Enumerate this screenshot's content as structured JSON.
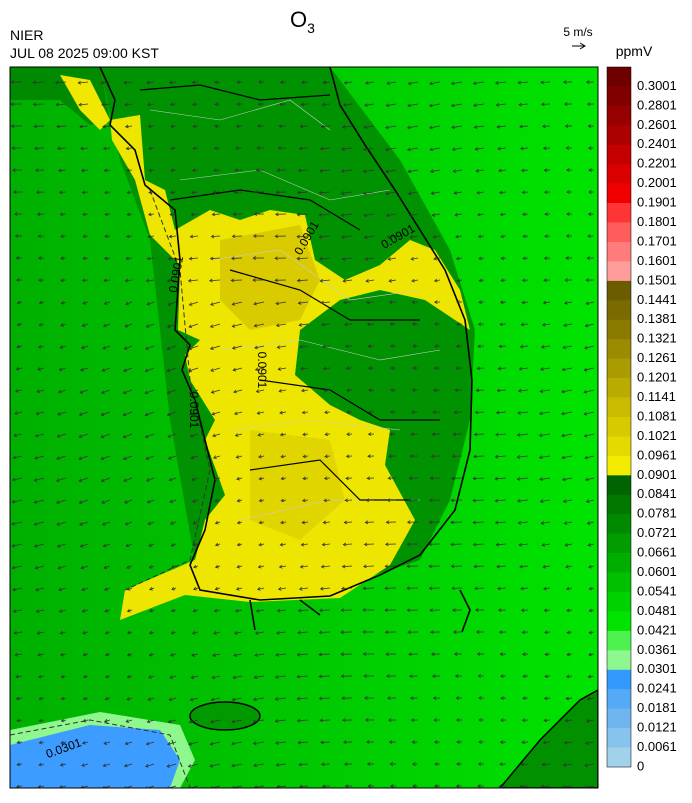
{
  "header": {
    "title": "O",
    "title_subscript": "3",
    "agency": "NIER",
    "datetime": "JUL 08 2025 09:00 KST",
    "wind_scale": "5 m/s"
  },
  "legend": {
    "unit": "ppmV",
    "labels": [
      "0.3001",
      "0.2801",
      "0.2601",
      "0.2401",
      "0.2201",
      "0.2001",
      "0.1901",
      "0.1801",
      "0.1701",
      "0.1601",
      "0.1501",
      "0.1441",
      "0.1381",
      "0.1321",
      "0.1261",
      "0.1201",
      "0.1141",
      "0.1081",
      "0.1021",
      "0.0961",
      "0.0901",
      "0.0841",
      "0.0781",
      "0.0721",
      "0.0661",
      "0.0601",
      "0.0541",
      "0.0481",
      "0.0421",
      "0.0361",
      "0.0301",
      "0.0241",
      "0.0181",
      "0.0121",
      "0.0061",
      "0"
    ],
    "colors": [
      "#6e0000",
      "#800000",
      "#960000",
      "#ad0000",
      "#c40000",
      "#db0000",
      "#f00000",
      "#ff3434",
      "#ff5c5c",
      "#ff7c7c",
      "#ff9c9c",
      "#6b5c00",
      "#7a6b00",
      "#8a7b00",
      "#9a8b00",
      "#aa9b00",
      "#baab00",
      "#cabb00",
      "#d8ca00",
      "#e6d900",
      "#f4ec00",
      "#006400",
      "#007800",
      "#008a00",
      "#009c00",
      "#00ae00",
      "#00c000",
      "#00d200",
      "#00e400",
      "#4ef24e",
      "#8ef88e",
      "#3399ff",
      "#55aaf5",
      "#6fb6f0",
      "#87c3ec",
      "#a2d2ea"
    ]
  },
  "map": {
    "contour_labels": [
      "0.0901",
      "0.0901",
      "0.0901",
      "0.0901",
      "0.0901",
      "0.0301"
    ]
  }
}
